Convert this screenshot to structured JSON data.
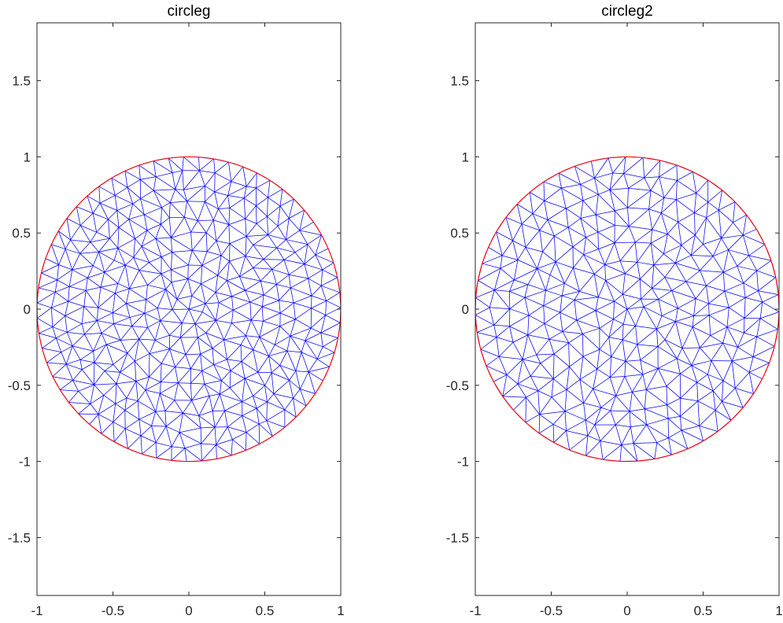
{
  "chart_data": [
    {
      "type": "mesh",
      "title": "circleg",
      "xlim": [
        -1,
        1
      ],
      "ylim": [
        -1.88,
        1.88
      ],
      "xticks": [
        -1,
        -0.5,
        0,
        0.5,
        1
      ],
      "xtick_labels": [
        "-1",
        "-0.5",
        "0",
        "0.5",
        "1"
      ],
      "yticks": [
        -1.5,
        -1,
        -0.5,
        0,
        0.5,
        1,
        1.5
      ],
      "ytick_labels": [
        "-1.5",
        "-1",
        "-0.5",
        "0",
        "0.5",
        "1",
        "1.5"
      ],
      "geometry": {
        "shape": "circle",
        "center": [
          0,
          0
        ],
        "radius": 1
      },
      "mesh_ring_counts": [
        1,
        7,
        13,
        19,
        26,
        32,
        38,
        45,
        51,
        57,
        63
      ],
      "mesh_ring_phase": 0.0,
      "mesh_color": "#0000ff",
      "boundary_color": "#ff0000",
      "grid": false
    },
    {
      "type": "mesh",
      "title": "circleg2",
      "xlim": [
        -1,
        1
      ],
      "ylim": [
        -1.88,
        1.88
      ],
      "xticks": [
        -1,
        -0.5,
        0,
        0.5,
        1
      ],
      "xtick_labels": [
        "-1",
        "-0.5",
        "0",
        "0.5",
        "1"
      ],
      "yticks": [
        -1.5,
        -1,
        -0.5,
        0,
        0.5,
        1,
        1.5
      ],
      "ytick_labels": [
        "-1.5",
        "-1",
        "-0.5",
        "0",
        "0.5",
        "1",
        "1.5"
      ],
      "geometry": {
        "shape": "circle",
        "center": [
          0,
          0
        ],
        "radius": 1
      },
      "mesh_ring_counts": [
        1,
        7,
        13,
        19,
        25,
        31,
        37,
        43,
        49,
        55
      ],
      "mesh_ring_phase": 0.35,
      "mesh_color": "#0000ff",
      "boundary_color": "#ff0000",
      "grid": false
    }
  ]
}
